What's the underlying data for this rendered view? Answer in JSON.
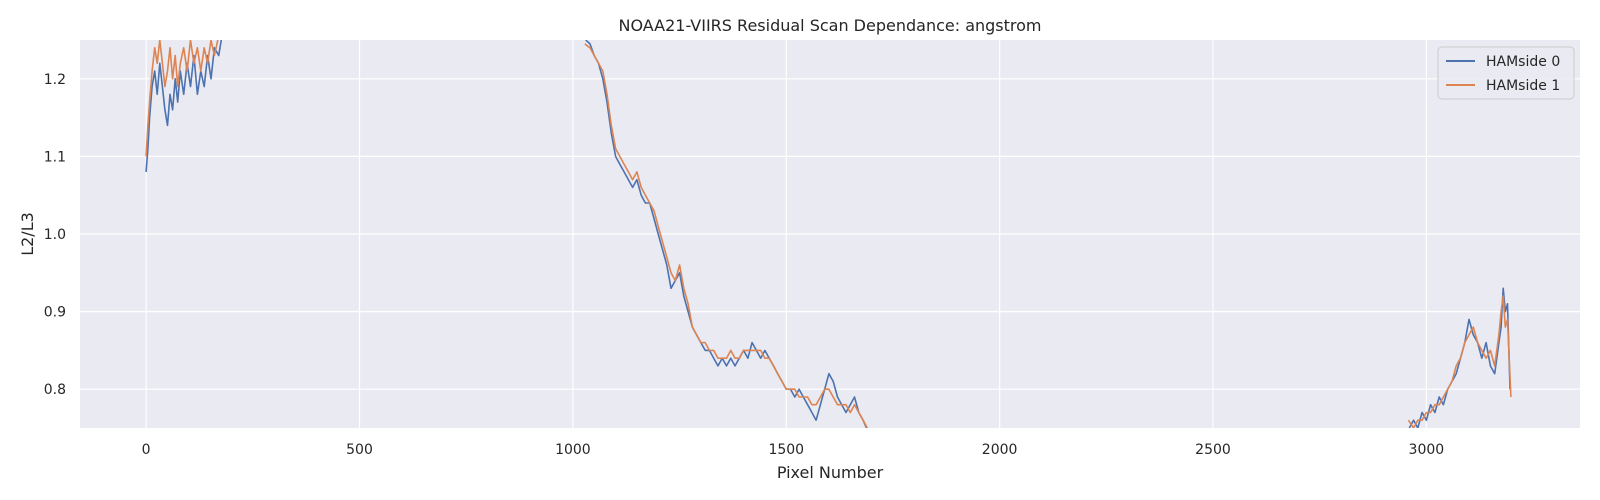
{
  "chart_data": {
    "type": "line",
    "title": "NOAA21-VIIRS Residual Scan Dependance: angstrom",
    "xlabel": "Pixel Number",
    "ylabel": "L2/L3",
    "xlim": [
      -155,
      3360
    ],
    "ylim": [
      0.75,
      1.25
    ],
    "x_ticks": [
      0,
      500,
      1000,
      1500,
      2000,
      2500,
      3000
    ],
    "y_ticks": [
      0.8,
      0.9,
      1.0,
      1.1,
      1.2
    ],
    "x_tick_labels": [
      "0",
      "500",
      "1000",
      "1500",
      "2000",
      "2500",
      "3000"
    ],
    "y_tick_labels": [
      "0.8",
      "0.9",
      "1.0",
      "1.1",
      "1.2"
    ],
    "grid": true,
    "legend_position": "top-right",
    "series": [
      {
        "name": "HAMside 0",
        "color": "#4c72b0",
        "points": [
          [
            0,
            1.08
          ],
          [
            4,
            1.11
          ],
          [
            8,
            1.15
          ],
          [
            14,
            1.19
          ],
          [
            20,
            1.21
          ],
          [
            26,
            1.18
          ],
          [
            32,
            1.22
          ],
          [
            38,
            1.19
          ],
          [
            44,
            1.16
          ],
          [
            50,
            1.14
          ],
          [
            56,
            1.18
          ],
          [
            62,
            1.16
          ],
          [
            68,
            1.2
          ],
          [
            74,
            1.17
          ],
          [
            80,
            1.21
          ],
          [
            88,
            1.18
          ],
          [
            96,
            1.22
          ],
          [
            104,
            1.19
          ],
          [
            112,
            1.23
          ],
          [
            120,
            1.18
          ],
          [
            128,
            1.21
          ],
          [
            136,
            1.19
          ],
          [
            144,
            1.23
          ],
          [
            152,
            1.2
          ],
          [
            160,
            1.24
          ],
          [
            170,
            1.23
          ],
          [
            176,
            1.25
          ],
          [
            1030,
            1.25
          ],
          [
            1040,
            1.245
          ],
          [
            1050,
            1.23
          ],
          [
            1060,
            1.22
          ],
          [
            1070,
            1.2
          ],
          [
            1080,
            1.17
          ],
          [
            1090,
            1.13
          ],
          [
            1100,
            1.1
          ],
          [
            1110,
            1.09
          ],
          [
            1120,
            1.08
          ],
          [
            1130,
            1.07
          ],
          [
            1140,
            1.06
          ],
          [
            1150,
            1.07
          ],
          [
            1160,
            1.05
          ],
          [
            1170,
            1.04
          ],
          [
            1180,
            1.04
          ],
          [
            1190,
            1.02
          ],
          [
            1200,
            1.0
          ],
          [
            1210,
            0.98
          ],
          [
            1220,
            0.96
          ],
          [
            1230,
            0.93
          ],
          [
            1240,
            0.94
          ],
          [
            1250,
            0.95
          ],
          [
            1260,
            0.92
          ],
          [
            1270,
            0.9
          ],
          [
            1280,
            0.88
          ],
          [
            1290,
            0.87
          ],
          [
            1300,
            0.86
          ],
          [
            1310,
            0.85
          ],
          [
            1320,
            0.85
          ],
          [
            1330,
            0.84
          ],
          [
            1340,
            0.83
          ],
          [
            1350,
            0.84
          ],
          [
            1360,
            0.83
          ],
          [
            1370,
            0.84
          ],
          [
            1380,
            0.83
          ],
          [
            1390,
            0.84
          ],
          [
            1400,
            0.85
          ],
          [
            1410,
            0.84
          ],
          [
            1420,
            0.86
          ],
          [
            1430,
            0.85
          ],
          [
            1440,
            0.84
          ],
          [
            1450,
            0.85
          ],
          [
            1460,
            0.84
          ],
          [
            1470,
            0.83
          ],
          [
            1480,
            0.82
          ],
          [
            1490,
            0.81
          ],
          [
            1500,
            0.8
          ],
          [
            1510,
            0.8
          ],
          [
            1520,
            0.79
          ],
          [
            1530,
            0.8
          ],
          [
            1540,
            0.79
          ],
          [
            1550,
            0.78
          ],
          [
            1560,
            0.77
          ],
          [
            1570,
            0.76
          ],
          [
            1580,
            0.78
          ],
          [
            1590,
            0.8
          ],
          [
            1600,
            0.82
          ],
          [
            1610,
            0.81
          ],
          [
            1620,
            0.79
          ],
          [
            1630,
            0.78
          ],
          [
            1640,
            0.77
          ],
          [
            1650,
            0.78
          ],
          [
            1660,
            0.79
          ],
          [
            1670,
            0.77
          ],
          [
            1680,
            0.76
          ],
          [
            1688,
            0.75
          ],
          [
            2960,
            0.75
          ],
          [
            2970,
            0.76
          ],
          [
            2980,
            0.75
          ],
          [
            2990,
            0.77
          ],
          [
            3000,
            0.76
          ],
          [
            3010,
            0.78
          ],
          [
            3020,
            0.77
          ],
          [
            3030,
            0.79
          ],
          [
            3040,
            0.78
          ],
          [
            3050,
            0.8
          ],
          [
            3060,
            0.81
          ],
          [
            3070,
            0.82
          ],
          [
            3080,
            0.84
          ],
          [
            3090,
            0.86
          ],
          [
            3100,
            0.89
          ],
          [
            3110,
            0.87
          ],
          [
            3120,
            0.86
          ],
          [
            3130,
            0.84
          ],
          [
            3140,
            0.86
          ],
          [
            3150,
            0.83
          ],
          [
            3160,
            0.82
          ],
          [
            3165,
            0.84
          ],
          [
            3170,
            0.86
          ],
          [
            3175,
            0.88
          ],
          [
            3180,
            0.93
          ],
          [
            3185,
            0.9
          ],
          [
            3190,
            0.91
          ],
          [
            3196,
            0.8
          ]
        ]
      },
      {
        "name": "HAMside 1",
        "color": "#dd8452",
        "points": [
          [
            0,
            1.1
          ],
          [
            4,
            1.14
          ],
          [
            8,
            1.17
          ],
          [
            14,
            1.21
          ],
          [
            20,
            1.24
          ],
          [
            26,
            1.22
          ],
          [
            32,
            1.25
          ],
          [
            38,
            1.22
          ],
          [
            44,
            1.19
          ],
          [
            50,
            1.21
          ],
          [
            56,
            1.24
          ],
          [
            62,
            1.2
          ],
          [
            68,
            1.23
          ],
          [
            74,
            1.19
          ],
          [
            80,
            1.22
          ],
          [
            88,
            1.24
          ],
          [
            96,
            1.21
          ],
          [
            104,
            1.25
          ],
          [
            112,
            1.22
          ],
          [
            120,
            1.24
          ],
          [
            128,
            1.21
          ],
          [
            136,
            1.24
          ],
          [
            144,
            1.22
          ],
          [
            152,
            1.25
          ],
          [
            160,
            1.23
          ],
          [
            168,
            1.25
          ],
          [
            1028,
            1.245
          ],
          [
            1040,
            1.24
          ],
          [
            1050,
            1.23
          ],
          [
            1060,
            1.22
          ],
          [
            1070,
            1.21
          ],
          [
            1080,
            1.18
          ],
          [
            1090,
            1.14
          ],
          [
            1100,
            1.11
          ],
          [
            1110,
            1.1
          ],
          [
            1120,
            1.09
          ],
          [
            1130,
            1.08
          ],
          [
            1140,
            1.07
          ],
          [
            1150,
            1.08
          ],
          [
            1160,
            1.06
          ],
          [
            1170,
            1.05
          ],
          [
            1180,
            1.04
          ],
          [
            1190,
            1.03
          ],
          [
            1200,
            1.01
          ],
          [
            1210,
            0.99
          ],
          [
            1220,
            0.97
          ],
          [
            1230,
            0.95
          ],
          [
            1240,
            0.94
          ],
          [
            1250,
            0.96
          ],
          [
            1260,
            0.93
          ],
          [
            1270,
            0.91
          ],
          [
            1280,
            0.88
          ],
          [
            1290,
            0.87
          ],
          [
            1300,
            0.86
          ],
          [
            1310,
            0.86
          ],
          [
            1320,
            0.85
          ],
          [
            1330,
            0.85
          ],
          [
            1340,
            0.84
          ],
          [
            1350,
            0.84
          ],
          [
            1360,
            0.84
          ],
          [
            1370,
            0.85
          ],
          [
            1380,
            0.84
          ],
          [
            1390,
            0.84
          ],
          [
            1400,
            0.85
          ],
          [
            1410,
            0.85
          ],
          [
            1420,
            0.85
          ],
          [
            1430,
            0.85
          ],
          [
            1440,
            0.85
          ],
          [
            1450,
            0.84
          ],
          [
            1460,
            0.84
          ],
          [
            1470,
            0.83
          ],
          [
            1480,
            0.82
          ],
          [
            1490,
            0.81
          ],
          [
            1500,
            0.8
          ],
          [
            1510,
            0.8
          ],
          [
            1520,
            0.8
          ],
          [
            1530,
            0.79
          ],
          [
            1540,
            0.79
          ],
          [
            1550,
            0.79
          ],
          [
            1560,
            0.78
          ],
          [
            1570,
            0.78
          ],
          [
            1580,
            0.79
          ],
          [
            1590,
            0.8
          ],
          [
            1600,
            0.8
          ],
          [
            1610,
            0.79
          ],
          [
            1620,
            0.78
          ],
          [
            1630,
            0.78
          ],
          [
            1640,
            0.78
          ],
          [
            1650,
            0.77
          ],
          [
            1660,
            0.78
          ],
          [
            1670,
            0.77
          ],
          [
            1680,
            0.76
          ],
          [
            1690,
            0.75
          ],
          [
            2958,
            0.76
          ],
          [
            2970,
            0.75
          ],
          [
            2980,
            0.76
          ],
          [
            2990,
            0.76
          ],
          [
            3000,
            0.77
          ],
          [
            3010,
            0.77
          ],
          [
            3020,
            0.78
          ],
          [
            3030,
            0.78
          ],
          [
            3040,
            0.79
          ],
          [
            3050,
            0.8
          ],
          [
            3060,
            0.81
          ],
          [
            3070,
            0.83
          ],
          [
            3080,
            0.84
          ],
          [
            3090,
            0.86
          ],
          [
            3100,
            0.87
          ],
          [
            3110,
            0.88
          ],
          [
            3120,
            0.86
          ],
          [
            3130,
            0.85
          ],
          [
            3140,
            0.84
          ],
          [
            3150,
            0.85
          ],
          [
            3160,
            0.83
          ],
          [
            3165,
            0.85
          ],
          [
            3170,
            0.87
          ],
          [
            3175,
            0.9
          ],
          [
            3180,
            0.92
          ],
          [
            3185,
            0.88
          ],
          [
            3190,
            0.89
          ],
          [
            3198,
            0.79
          ]
        ]
      }
    ]
  }
}
